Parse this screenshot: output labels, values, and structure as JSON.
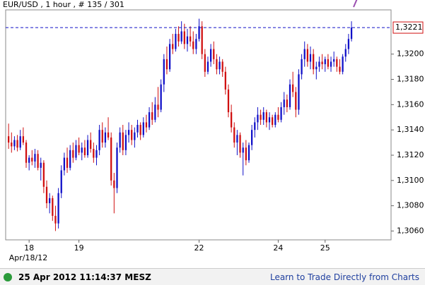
{
  "chart_data": {
    "type": "candlestick",
    "title": "EUR/USD , 1 hour , # 135 / 301",
    "start_date": "Apr/18/12",
    "up_color": "#1010c8",
    "down_color": "#d01010",
    "ylim": [
      1.3053,
      1.3235
    ],
    "yticks": [
      {
        "value": 1.306,
        "label": "1,3060"
      },
      {
        "value": 1.308,
        "label": "1,3080"
      },
      {
        "value": 1.31,
        "label": "1,3100"
      },
      {
        "value": 1.312,
        "label": "1,3120"
      },
      {
        "value": 1.314,
        "label": "1,3140"
      },
      {
        "value": 1.316,
        "label": "1,3160"
      },
      {
        "value": 1.318,
        "label": "1,3180"
      },
      {
        "value": 1.32,
        "label": "1,3200"
      }
    ],
    "xlim": [
      -1,
      130.5
    ],
    "xticks": [
      {
        "value": 7,
        "label": "18"
      },
      {
        "value": 24,
        "label": "19"
      },
      {
        "value": 65,
        "label": "22"
      },
      {
        "value": 92,
        "label": "24"
      },
      {
        "value": 108,
        "label": "25"
      }
    ],
    "last_price": {
      "value": 1.3221,
      "label": "1,3221"
    },
    "candles": [
      [
        1.3135,
        1.3145,
        1.3125,
        1.313
      ],
      [
        1.313,
        1.3138,
        1.3122,
        1.3127
      ],
      [
        1.3127,
        1.3135,
        1.3124,
        1.3132
      ],
      [
        1.3132,
        1.3136,
        1.3123,
        1.3126
      ],
      [
        1.3126,
        1.314,
        1.3124,
        1.3135
      ],
      [
        1.3135,
        1.3142,
        1.3128,
        1.313
      ],
      [
        1.313,
        1.3132,
        1.311,
        1.3114
      ],
      [
        1.3114,
        1.312,
        1.3108,
        1.3118
      ],
      [
        1.3118,
        1.3124,
        1.3112,
        1.3115
      ],
      [
        1.3115,
        1.3125,
        1.311,
        1.3121
      ],
      [
        1.3121,
        1.3124,
        1.3108,
        1.311
      ],
      [
        1.311,
        1.3118,
        1.31,
        1.3114
      ],
      [
        1.3114,
        1.3116,
        1.309,
        1.3095
      ],
      [
        1.3095,
        1.31,
        1.3078,
        1.3082
      ],
      [
        1.3082,
        1.309,
        1.3074,
        1.3086
      ],
      [
        1.3086,
        1.3088,
        1.3068,
        1.3072
      ],
      [
        1.3072,
        1.308,
        1.306,
        1.3066
      ],
      [
        1.3066,
        1.3094,
        1.3062,
        1.309
      ],
      [
        1.309,
        1.3112,
        1.3086,
        1.3108
      ],
      [
        1.3108,
        1.3122,
        1.3104,
        1.3118
      ],
      [
        1.3118,
        1.3126,
        1.3106,
        1.311
      ],
      [
        1.311,
        1.3128,
        1.3108,
        1.3124
      ],
      [
        1.3124,
        1.313,
        1.3114,
        1.3118
      ],
      [
        1.3118,
        1.3132,
        1.3116,
        1.3128
      ],
      [
        1.3128,
        1.3134,
        1.312,
        1.3122
      ],
      [
        1.3122,
        1.313,
        1.3116,
        1.3126
      ],
      [
        1.3126,
        1.3132,
        1.3118,
        1.312
      ],
      [
        1.312,
        1.3136,
        1.3118,
        1.3132
      ],
      [
        1.3132,
        1.3138,
        1.3122,
        1.3125
      ],
      [
        1.3125,
        1.313,
        1.3114,
        1.3118
      ],
      [
        1.3118,
        1.3128,
        1.3112,
        1.3124
      ],
      [
        1.3124,
        1.3144,
        1.312,
        1.314
      ],
      [
        1.314,
        1.3146,
        1.3126,
        1.313
      ],
      [
        1.313,
        1.3142,
        1.3126,
        1.3138
      ],
      [
        1.3138,
        1.315,
        1.3132,
        1.3134
      ],
      [
        1.3134,
        1.3138,
        1.3096,
        1.31
      ],
      [
        1.31,
        1.3106,
        1.3074,
        1.3094
      ],
      [
        1.3094,
        1.313,
        1.309,
        1.3126
      ],
      [
        1.3126,
        1.3142,
        1.3122,
        1.3138
      ],
      [
        1.3138,
        1.3144,
        1.312,
        1.3124
      ],
      [
        1.3124,
        1.314,
        1.312,
        1.3136
      ],
      [
        1.3136,
        1.3146,
        1.313,
        1.314
      ],
      [
        1.314,
        1.3144,
        1.3128,
        1.3132
      ],
      [
        1.3132,
        1.3142,
        1.3126,
        1.3138
      ],
      [
        1.3138,
        1.3148,
        1.3134,
        1.3144
      ],
      [
        1.3144,
        1.3146,
        1.3132,
        1.3136
      ],
      [
        1.3136,
        1.315,
        1.3134,
        1.3146
      ],
      [
        1.3146,
        1.3152,
        1.3138,
        1.3142
      ],
      [
        1.3142,
        1.3158,
        1.314,
        1.3154
      ],
      [
        1.3154,
        1.3162,
        1.3144,
        1.3148
      ],
      [
        1.3148,
        1.3166,
        1.3146,
        1.316
      ],
      [
        1.316,
        1.3174,
        1.315,
        1.3156
      ],
      [
        1.3156,
        1.318,
        1.3154,
        1.3176
      ],
      [
        1.3176,
        1.32,
        1.317,
        1.3196
      ],
      [
        1.3196,
        1.3206,
        1.3184,
        1.3188
      ],
      [
        1.3188,
        1.3212,
        1.3186,
        1.3208
      ],
      [
        1.3208,
        1.3216,
        1.32,
        1.3204
      ],
      [
        1.3204,
        1.322,
        1.3202,
        1.3216
      ],
      [
        1.3216,
        1.3222,
        1.3206,
        1.321
      ],
      [
        1.321,
        1.3226,
        1.3208,
        1.3218
      ],
      [
        1.3218,
        1.3224,
        1.3204,
        1.3208
      ],
      [
        1.3208,
        1.322,
        1.3202,
        1.3214
      ],
      [
        1.3214,
        1.3222,
        1.3206,
        1.321
      ],
      [
        1.321,
        1.3218,
        1.32,
        1.3204
      ],
      [
        1.3204,
        1.3216,
        1.32,
        1.3212
      ],
      [
        1.3212,
        1.3228,
        1.321,
        1.3222
      ],
      [
        1.3222,
        1.3226,
        1.3196,
        1.32
      ],
      [
        1.32,
        1.3204,
        1.3182,
        1.3186
      ],
      [
        1.3186,
        1.3198,
        1.3184,
        1.3194
      ],
      [
        1.3194,
        1.3208,
        1.319,
        1.3204
      ],
      [
        1.3204,
        1.321,
        1.3192,
        1.3196
      ],
      [
        1.3196,
        1.32,
        1.3184,
        1.3188
      ],
      [
        1.3188,
        1.3198,
        1.3184,
        1.3194
      ],
      [
        1.3194,
        1.3196,
        1.3182,
        1.3186
      ],
      [
        1.3186,
        1.319,
        1.3168,
        1.3172
      ],
      [
        1.3172,
        1.3176,
        1.315,
        1.3154
      ],
      [
        1.3154,
        1.316,
        1.3138,
        1.3142
      ],
      [
        1.3142,
        1.3146,
        1.3126,
        1.313
      ],
      [
        1.313,
        1.314,
        1.312,
        1.3136
      ],
      [
        1.3136,
        1.3138,
        1.3118,
        1.3122
      ],
      [
        1.3122,
        1.313,
        1.3104,
        1.3126
      ],
      [
        1.3126,
        1.3132,
        1.3112,
        1.3116
      ],
      [
        1.3116,
        1.313,
        1.3114,
        1.3128
      ],
      [
        1.3128,
        1.3144,
        1.3124,
        1.314
      ],
      [
        1.314,
        1.315,
        1.3134,
        1.3146
      ],
      [
        1.3146,
        1.3158,
        1.314,
        1.3152
      ],
      [
        1.3152,
        1.3156,
        1.3144,
        1.3148
      ],
      [
        1.3148,
        1.3158,
        1.3144,
        1.3154
      ],
      [
        1.3154,
        1.3156,
        1.3142,
        1.3146
      ],
      [
        1.3146,
        1.3154,
        1.314,
        1.315
      ],
      [
        1.315,
        1.3152,
        1.3142,
        1.3144
      ],
      [
        1.3144,
        1.3154,
        1.3142,
        1.3152
      ],
      [
        1.3152,
        1.3158,
        1.3146,
        1.3148
      ],
      [
        1.3148,
        1.3162,
        1.3146,
        1.3158
      ],
      [
        1.3158,
        1.317,
        1.3152,
        1.3164
      ],
      [
        1.3164,
        1.3168,
        1.3154,
        1.3158
      ],
      [
        1.3158,
        1.318,
        1.3156,
        1.3176
      ],
      [
        1.3176,
        1.3186,
        1.3166,
        1.317
      ],
      [
        1.317,
        1.3174,
        1.315,
        1.3156
      ],
      [
        1.3156,
        1.3188,
        1.3152,
        1.3184
      ],
      [
        1.3184,
        1.32,
        1.318,
        1.3196
      ],
      [
        1.3196,
        1.321,
        1.319,
        1.3204
      ],
      [
        1.3204,
        1.3208,
        1.319,
        1.3194
      ],
      [
        1.3194,
        1.3206,
        1.3188,
        1.32
      ],
      [
        1.32,
        1.3204,
        1.3184,
        1.3188
      ],
      [
        1.3188,
        1.3194,
        1.318,
        1.319
      ],
      [
        1.319,
        1.3198,
        1.3186,
        1.3194
      ],
      [
        1.3194,
        1.32,
        1.3188,
        1.3192
      ],
      [
        1.3192,
        1.3198,
        1.3186,
        1.3196
      ],
      [
        1.3196,
        1.32,
        1.3188,
        1.319
      ],
      [
        1.319,
        1.3198,
        1.3186,
        1.3194
      ],
      [
        1.3194,
        1.3202,
        1.319,
        1.3196
      ],
      [
        1.3196,
        1.3198,
        1.3186,
        1.319
      ],
      [
        1.319,
        1.3196,
        1.3184,
        1.3186
      ],
      [
        1.3186,
        1.32,
        1.3184,
        1.3198
      ],
      [
        1.3198,
        1.3208,
        1.3194,
        1.3204
      ],
      [
        1.3204,
        1.3216,
        1.32,
        1.3212
      ],
      [
        1.3212,
        1.3226,
        1.321,
        1.3221
      ]
    ]
  },
  "footer": {
    "timestamp": "25 Apr 2012 11:14:37 MESZ",
    "link": "Learn to Trade Directly from Charts"
  }
}
